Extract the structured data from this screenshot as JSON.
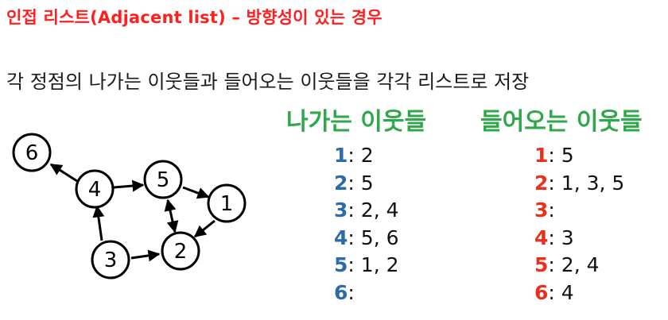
{
  "title": "인접 리스트(Adjacent list) – 방향성이 있는 경우",
  "description": "각 정점의 나가는 이웃들과 들어오는 이웃들을 각각 리스트로 저장",
  "colors": {
    "title": "#ff1f1f",
    "header": "#2ea84a",
    "outgoing_vertex": "#2c6aa8",
    "incoming_vertex": "#e8301c"
  },
  "graph": {
    "nodes": [
      "6",
      "4",
      "5",
      "1",
      "3",
      "2"
    ],
    "edges": [
      [
        "4",
        "6"
      ],
      [
        "4",
        "5"
      ],
      [
        "5",
        "1"
      ],
      [
        "5",
        "2"
      ],
      [
        "2",
        "5"
      ],
      [
        "1",
        "2"
      ],
      [
        "3",
        "4"
      ],
      [
        "3",
        "2"
      ]
    ]
  },
  "outgoing": {
    "header": "나가는 이웃들",
    "rows": [
      {
        "vertex": "1",
        "neighbors": " 2"
      },
      {
        "vertex": "2",
        "neighbors": " 5"
      },
      {
        "vertex": "3",
        "neighbors": " 2, 4"
      },
      {
        "vertex": "4",
        "neighbors": " 5, 6"
      },
      {
        "vertex": "5",
        "neighbors": " 1, 2"
      },
      {
        "vertex": "6",
        "neighbors": ""
      }
    ]
  },
  "incoming": {
    "header": "들어오는 이웃들",
    "rows": [
      {
        "vertex": "1",
        "neighbors": " 5"
      },
      {
        "vertex": "2",
        "neighbors": " 1, 3, 5"
      },
      {
        "vertex": "3",
        "neighbors": ""
      },
      {
        "vertex": "4",
        "neighbors": " 3"
      },
      {
        "vertex": "5",
        "neighbors": " 2, 4"
      },
      {
        "vertex": "6",
        "neighbors": " 4"
      }
    ]
  }
}
